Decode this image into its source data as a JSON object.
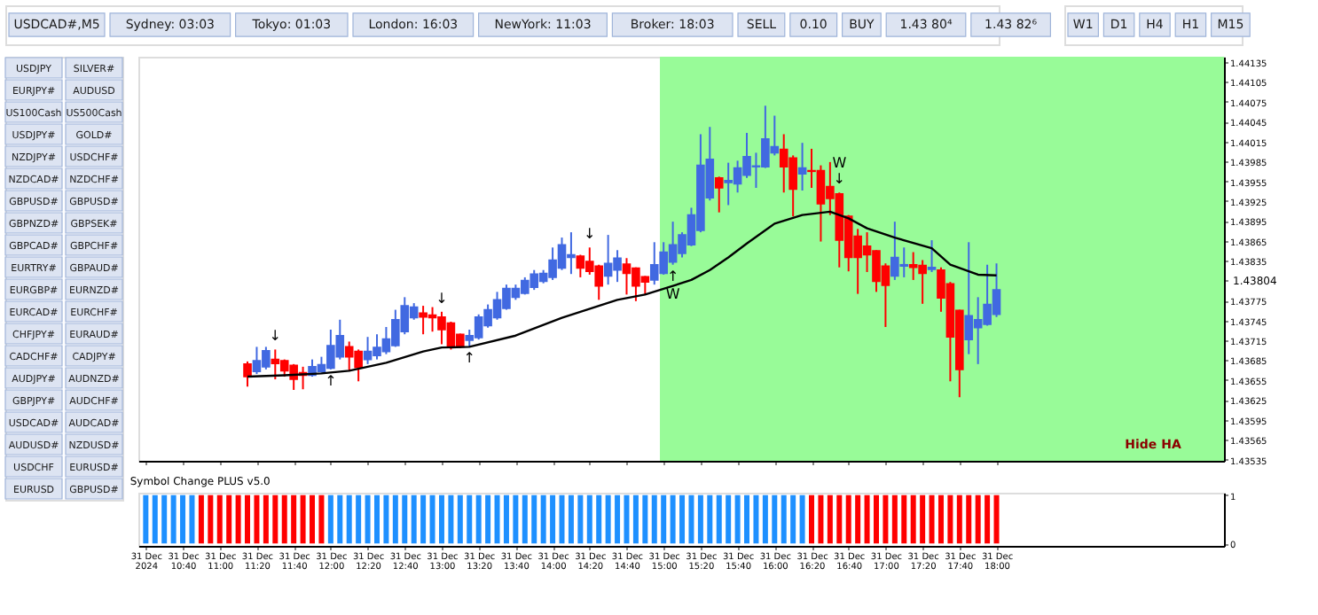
{
  "chart_data": [
    {
      "type": "candlestick",
      "xlim": [
        "2024-12-31T10:16",
        "2024-12-31T20:03"
      ],
      "ylim": [
        1.43533,
        1.44143
      ],
      "tick_labels": "y",
      "xticks": [
        {
          "value": "2024-12-31T10:20",
          "label": null
        },
        {
          "value": "2024-12-31T10:40",
          "label": null
        },
        {
          "value": "2024-12-31T11:00",
          "label": null
        },
        {
          "value": "2024-12-31T11:20",
          "label": null
        },
        {
          "value": "2024-12-31T11:40",
          "label": null
        },
        {
          "value": "2024-12-31T12:00",
          "label": null
        },
        {
          "value": "2024-12-31T12:20",
          "label": null
        },
        {
          "value": "2024-12-31T12:40",
          "label": null
        },
        {
          "value": "2024-12-31T13:00",
          "label": null
        },
        {
          "value": "2024-12-31T13:20",
          "label": null
        },
        {
          "value": "2024-12-31T13:40",
          "label": null
        },
        {
          "value": "2024-12-31T14:00",
          "label": null
        },
        {
          "value": "2024-12-31T14:20",
          "label": null
        },
        {
          "value": "2024-12-31T14:40",
          "label": null
        },
        {
          "value": "2024-12-31T15:00",
          "label": null
        },
        {
          "value": "2024-12-31T15:20",
          "label": null
        },
        {
          "value": "2024-12-31T15:40",
          "label": null
        },
        {
          "value": "2024-12-31T16:00",
          "label": null
        },
        {
          "value": "2024-12-31T16:20",
          "label": null
        },
        {
          "value": "2024-12-31T16:40",
          "label": null
        },
        {
          "value": "2024-12-31T17:00",
          "label": null
        },
        {
          "value": "2024-12-31T17:20",
          "label": null
        },
        {
          "value": "2024-12-31T17:40",
          "label": null
        },
        {
          "value": "2024-12-31T18:00",
          "label": null
        }
      ],
      "yticks": [
        1.43535,
        1.43565,
        1.43595,
        1.43625,
        1.43655,
        1.43685,
        1.43715,
        1.43745,
        1.43775,
        {
          "value": 1.43805,
          "label": null
        },
        1.43835,
        1.43865,
        1.43895,
        1.43925,
        1.43955,
        1.43985,
        1.44015,
        1.44045,
        1.44075,
        1.44105,
        1.44135
      ],
      "bands": [
        {
          "axis": "x",
          "from": "2024-12-31T14:58",
          "to": "2024-12-31T20:03",
          "color": "#98fb98"
        }
      ],
      "x": [
        "2024-12-31T11:15",
        "2024-12-31T11:20",
        "2024-12-31T11:25",
        "2024-12-31T11:30",
        "2024-12-31T11:35",
        "2024-12-31T11:40",
        "2024-12-31T11:45",
        "2024-12-31T11:50",
        "2024-12-31T11:55",
        "2024-12-31T12:00",
        "2024-12-31T12:05",
        "2024-12-31T12:10",
        "2024-12-31T12:15",
        "2024-12-31T12:20",
        "2024-12-31T12:25",
        "2024-12-31T12:30",
        "2024-12-31T12:35",
        "2024-12-31T12:40",
        "2024-12-31T12:45",
        "2024-12-31T12:50",
        "2024-12-31T12:55",
        "2024-12-31T13:00",
        "2024-12-31T13:05",
        "2024-12-31T13:10",
        "2024-12-31T13:15",
        "2024-12-31T13:20",
        "2024-12-31T13:25",
        "2024-12-31T13:30",
        "2024-12-31T13:35",
        "2024-12-31T13:40",
        "2024-12-31T13:45",
        "2024-12-31T13:50",
        "2024-12-31T13:55",
        "2024-12-31T14:00",
        "2024-12-31T14:05",
        "2024-12-31T14:10",
        "2024-12-31T14:15",
        "2024-12-31T14:20",
        "2024-12-31T14:25",
        "2024-12-31T14:30",
        "2024-12-31T14:35",
        "2024-12-31T14:40",
        "2024-12-31T14:45",
        "2024-12-31T14:50",
        "2024-12-31T14:55",
        "2024-12-31T15:00",
        "2024-12-31T15:05",
        "2024-12-31T15:10",
        "2024-12-31T15:15",
        "2024-12-31T15:20",
        "2024-12-31T15:25",
        "2024-12-31T15:30",
        "2024-12-31T15:35",
        "2024-12-31T15:40",
        "2024-12-31T15:45",
        "2024-12-31T15:50",
        "2024-12-31T15:55",
        "2024-12-31T16:00",
        "2024-12-31T16:05",
        "2024-12-31T16:10",
        "2024-12-31T16:15",
        "2024-12-31T16:20",
        "2024-12-31T16:25",
        "2024-12-31T16:30",
        "2024-12-31T16:35",
        "2024-12-31T16:40",
        "2024-12-31T16:45",
        "2024-12-31T16:50",
        "2024-12-31T16:55",
        "2024-12-31T17:00",
        "2024-12-31T17:05",
        "2024-12-31T17:10",
        "2024-12-31T17:15",
        "2024-12-31T17:20",
        "2024-12-31T17:25",
        "2024-12-31T17:30",
        "2024-12-31T17:35",
        "2024-12-31T17:40",
        "2024-12-31T17:45",
        "2024-12-31T17:50",
        "2024-12-31T17:55",
        "2024-12-31T18:00"
      ],
      "ohlc": [
        [
          1.43679,
          1.43683,
          1.43645,
          1.4366
        ],
        [
          1.43668,
          1.43705,
          1.43664,
          1.43684
        ],
        [
          1.43675,
          1.43705,
          1.43671,
          1.43699
        ],
        [
          1.43686,
          1.43701,
          1.43656,
          1.4368
        ],
        [
          1.43684,
          1.43686,
          1.4366,
          1.43669
        ],
        [
          1.43677,
          1.43679,
          1.4364,
          1.43656
        ],
        [
          1.43666,
          1.43675,
          1.43641,
          1.43662
        ],
        [
          1.43662,
          1.43686,
          1.4366,
          1.43675
        ],
        [
          1.43668,
          1.4369,
          1.43666,
          1.43678
        ],
        [
          1.43673,
          1.43731,
          1.43671,
          1.43707
        ],
        [
          1.4369,
          1.43746,
          1.43686,
          1.43722
        ],
        [
          1.43705,
          1.43713,
          1.43668,
          1.4369
        ],
        [
          1.43698,
          1.43701,
          1.43653,
          1.43674
        ],
        [
          1.43686,
          1.4372,
          1.43679,
          1.43698
        ],
        [
          1.43692,
          1.43724,
          1.43686,
          1.43704
        ],
        [
          1.43698,
          1.43735,
          1.43694,
          1.43717
        ],
        [
          1.43707,
          1.43761,
          1.43705,
          1.43746
        ],
        [
          1.43728,
          1.4378,
          1.43724,
          1.43767
        ],
        [
          1.43749,
          1.43771,
          1.43746,
          1.43765
        ],
        [
          1.43756,
          1.43767,
          1.43724,
          1.4375
        ],
        [
          1.43753,
          1.43765,
          1.43728,
          1.43749
        ],
        [
          1.4375,
          1.43758,
          1.43709,
          1.43731
        ],
        [
          1.43741,
          1.43743,
          1.43701,
          1.43705
        ],
        [
          1.43724,
          1.43725,
          1.43703,
          1.43705
        ],
        [
          1.43715,
          1.43731,
          1.43705,
          1.43722
        ],
        [
          1.43719,
          1.43754,
          1.43716,
          1.4375
        ],
        [
          1.43737,
          1.43769,
          1.43734,
          1.43761
        ],
        [
          1.43749,
          1.43788,
          1.43746,
          1.43776
        ],
        [
          1.43763,
          1.43799,
          1.43761,
          1.43793
        ],
        [
          1.4378,
          1.43799,
          1.43776,
          1.43793
        ],
        [
          1.43786,
          1.4381,
          1.43784,
          1.43805
        ],
        [
          1.43795,
          1.43821,
          1.43791,
          1.43815
        ],
        [
          1.43804,
          1.43821,
          1.43801,
          1.43816
        ],
        [
          1.4381,
          1.43855,
          1.43806,
          1.43836
        ],
        [
          1.43824,
          1.4387,
          1.43821,
          1.43859
        ],
        [
          1.4384,
          1.43878,
          1.43815,
          1.43844
        ],
        [
          1.43842,
          1.43844,
          1.4381,
          1.43824
        ],
        [
          1.43834,
          1.43855,
          1.43814,
          1.43819
        ],
        [
          1.43827,
          1.43829,
          1.43776,
          1.43797
        ],
        [
          1.43812,
          1.43874,
          1.43799,
          1.43831
        ],
        [
          1.43821,
          1.43851,
          1.43803,
          1.43839
        ],
        [
          1.4383,
          1.43839,
          1.43784,
          1.43816
        ],
        [
          1.43824,
          1.43825,
          1.43774,
          1.43797
        ],
        [
          1.43811,
          1.43812,
          1.43784,
          1.43803
        ],
        [
          1.43806,
          1.43863,
          1.43799,
          1.43829
        ],
        [
          1.43816,
          1.43863,
          1.43814,
          1.43848
        ],
        [
          1.43833,
          1.43894,
          1.43829,
          1.43859
        ],
        [
          1.43846,
          1.43878,
          1.4384,
          1.43874
        ],
        [
          1.43859,
          1.43915,
          1.43857,
          1.43904
        ],
        [
          1.43881,
          1.44026,
          1.43878,
          1.43979
        ],
        [
          1.4393,
          1.44037,
          1.43926,
          1.43988
        ],
        [
          1.4396,
          1.43962,
          1.43908,
          1.43945
        ],
        [
          1.43953,
          1.43983,
          1.43919,
          1.43956
        ],
        [
          1.43951,
          1.43986,
          1.43938,
          1.43975
        ],
        [
          1.43964,
          1.44028,
          1.4396,
          1.43992
        ],
        [
          1.43977,
          1.43998,
          1.43945,
          1.43978
        ],
        [
          1.43977,
          1.44069,
          1.43975,
          1.44019
        ],
        [
          1.43998,
          1.44054,
          1.43994,
          1.44007
        ],
        [
          1.44003,
          1.44026,
          1.43938,
          1.43977
        ],
        [
          1.4399,
          1.43994,
          1.43902,
          1.43943
        ],
        [
          1.43966,
          1.44013,
          1.43941,
          1.43975
        ],
        [
          1.43971,
          1.44004,
          1.43945,
          1.4397
        ],
        [
          1.43971,
          1.43979,
          1.43864,
          1.43921
        ],
        [
          1.43947,
          1.43984,
          1.43904,
          1.43929
        ],
        [
          1.43936,
          1.43938,
          1.43825,
          1.43866
        ],
        [
          1.43902,
          1.43904,
          1.43819,
          1.4384
        ],
        [
          1.43872,
          1.43883,
          1.43785,
          1.4384
        ],
        [
          1.43857,
          1.43878,
          1.43818,
          1.43844
        ],
        [
          1.4385,
          1.43851,
          1.43788,
          1.43804
        ],
        [
          1.43827,
          1.43831,
          1.43735,
          1.43798
        ],
        [
          1.43812,
          1.43894,
          1.43806,
          1.4384
        ],
        [
          1.43827,
          1.43855,
          1.4381,
          1.43829
        ],
        [
          1.43829,
          1.43848,
          1.43806,
          1.43825
        ],
        [
          1.43828,
          1.43836,
          1.4377,
          1.43816
        ],
        [
          1.43822,
          1.43866,
          1.43818,
          1.43825
        ],
        [
          1.43821,
          1.43825,
          1.43758,
          1.43779
        ],
        [
          1.438,
          1.43803,
          1.43653,
          1.4372
        ],
        [
          1.4376,
          1.43761,
          1.43629,
          1.43671
        ],
        [
          1.43716,
          1.43863,
          1.43694,
          1.43752
        ],
        [
          1.43734,
          1.4378,
          1.43679,
          1.43746
        ],
        [
          1.43739,
          1.43829,
          1.43737,
          1.43769
        ],
        [
          1.43754,
          1.43831,
          1.4375,
          1.43791
        ]
      ],
      "colors": [
        "#ff0000",
        "#4169e1",
        "#4169e1",
        "#ff0000",
        "#ff0000",
        "#ff0000",
        "#ff0000",
        "#4169e1",
        "#4169e1",
        "#4169e1",
        "#4169e1",
        "#ff0000",
        "#ff0000",
        "#4169e1",
        "#4169e1",
        "#4169e1",
        "#4169e1",
        "#4169e1",
        "#4169e1",
        "#ff0000",
        "#ff0000",
        "#ff0000",
        "#ff0000",
        "#ff0000",
        "#4169e1",
        "#4169e1",
        "#4169e1",
        "#4169e1",
        "#4169e1",
        "#4169e1",
        "#4169e1",
        "#4169e1",
        "#4169e1",
        "#4169e1",
        "#4169e1",
        "#4169e1",
        "#ff0000",
        "#ff0000",
        "#ff0000",
        "#4169e1",
        "#4169e1",
        "#ff0000",
        "#ff0000",
        "#ff0000",
        "#4169e1",
        "#4169e1",
        "#4169e1",
        "#4169e1",
        "#4169e1",
        "#4169e1",
        "#4169e1",
        "#ff0000",
        "#4169e1",
        "#4169e1",
        "#4169e1",
        "#4169e1",
        "#4169e1",
        "#4169e1",
        "#ff0000",
        "#ff0000",
        "#4169e1",
        "#ff0000",
        "#ff0000",
        "#ff0000",
        "#ff0000",
        "#ff0000",
        "#ff0000",
        "#ff0000",
        "#ff0000",
        "#ff0000",
        "#4169e1",
        "#4169e1",
        "#ff0000",
        "#ff0000",
        "#4169e1",
        "#ff0000",
        "#ff0000",
        "#ff0000",
        "#4169e1",
        "#4169e1",
        "#4169e1",
        "#4169e1"
      ],
      "series": [
        {
          "type": "line",
          "color": "#000000",
          "x": [
            "2024-12-31T11:15",
            "2024-12-31T11:35",
            "2024-12-31T11:55",
            "2024-12-31T12:10",
            "2024-12-31T12:30",
            "2024-12-31T12:50",
            "2024-12-31T13:00",
            "2024-12-31T13:15",
            "2024-12-31T13:40",
            "2024-12-31T14:05",
            "2024-12-31T14:25",
            "2024-12-31T14:35",
            "2024-12-31T14:50",
            "2024-12-31T15:05",
            "2024-12-31T15:15",
            "2024-12-31T15:25",
            "2024-12-31T15:35",
            "2024-12-31T15:45",
            "2024-12-31T16:00",
            "2024-12-31T16:15",
            "2024-12-31T16:30",
            "2024-12-31T16:40",
            "2024-12-31T16:50",
            "2024-12-31T17:05",
            "2024-12-31T17:25",
            "2024-12-31T17:35",
            "2024-12-31T17:50",
            "2024-12-31T18:00"
          ],
          "values": [
            1.4366,
            1.43662,
            1.43665,
            1.43669,
            1.43681,
            1.43698,
            1.43704,
            1.43705,
            1.43722,
            1.43749,
            1.43767,
            1.43776,
            1.43784,
            1.43797,
            1.43806,
            1.43821,
            1.4384,
            1.43861,
            1.43891,
            1.43904,
            1.43909,
            1.43899,
            1.43884,
            1.4387,
            1.43854,
            1.43829,
            1.43814,
            1.43813
          ]
        }
      ],
      "annotations": [
        {
          "text": "↓",
          "x": "2024-12-31T11:30",
          "y": 1.43701
        },
        {
          "text": "↓",
          "x": "2024-12-31T13:00",
          "y": 1.43758
        },
        {
          "text": "↓",
          "x": "2024-12-31T14:20",
          "y": 1.43855
        },
        {
          "text": "↓",
          "x": "2024-12-31T16:35",
          "y": 1.43938
        },
        {
          "text": "W",
          "x": "2024-12-31T16:35",
          "y": 1.43938
        },
        {
          "text": "↑",
          "x": "2024-12-31T12:00",
          "y": 1.43671
        },
        {
          "text": "↑",
          "x": "2024-12-31T13:15",
          "y": 1.43705
        },
        {
          "text": "↑",
          "x": "2024-12-31T15:05",
          "y": 1.43829
        },
        {
          "text": "W",
          "x": "2024-12-31T15:05",
          "y": 1.43829
        },
        {
          "text": "1.43804",
          "x": "2024-12-31T20:03",
          "y": 1.43804
        },
        "Hide HA"
      ]
    },
    {
      "type": "bar",
      "title": "Symbol Change PLUS v5.0",
      "xlim": [
        "2024-12-31T10:16",
        "2024-12-31T20:03"
      ],
      "ylim": [
        -0.05,
        1.05
      ],
      "yticks": [
        0,
        1
      ],
      "xticks": [
        {
          "value": "2024-12-31T10:20",
          "label": "31 Dec 2024"
        },
        {
          "value": "2024-12-31T10:40",
          "label": "31 Dec 10:40"
        },
        {
          "value": "2024-12-31T11:00",
          "label": "31 Dec 11:00"
        },
        {
          "value": "2024-12-31T11:20",
          "label": "31 Dec 11:20"
        },
        {
          "value": "2024-12-31T11:40",
          "label": "31 Dec 11:40"
        },
        {
          "value": "2024-12-31T12:00",
          "label": "31 Dec 12:00"
        },
        {
          "value": "2024-12-31T12:20",
          "label": "31 Dec 12:20"
        },
        {
          "value": "2024-12-31T12:40",
          "label": "31 Dec 12:40"
        },
        {
          "value": "2024-12-31T13:00",
          "label": "31 Dec 13:00"
        },
        {
          "value": "2024-12-31T13:20",
          "label": "31 Dec 13:20"
        },
        {
          "value": "2024-12-31T13:40",
          "label": "31 Dec 13:40"
        },
        {
          "value": "2024-12-31T14:00",
          "label": "31 Dec 14:00"
        },
        {
          "value": "2024-12-31T14:20",
          "label": "31 Dec 14:20"
        },
        {
          "value": "2024-12-31T14:40",
          "label": "31 Dec 14:40"
        },
        {
          "value": "2024-12-31T15:00",
          "label": "31 Dec 15:00"
        },
        {
          "value": "2024-12-31T15:20",
          "label": "31 Dec 15:20"
        },
        {
          "value": "2024-12-31T15:40",
          "label": "31 Dec 15:40"
        },
        {
          "value": "2024-12-31T16:00",
          "label": "31 Dec 16:00"
        },
        {
          "value": "2024-12-31T16:20",
          "label": "31 Dec 16:20"
        },
        {
          "value": "2024-12-31T16:40",
          "label": "31 Dec 16:40"
        },
        {
          "value": "2024-12-31T17:00",
          "label": "31 Dec 17:00"
        },
        {
          "value": "2024-12-31T17:20",
          "label": "31 Dec 17:20"
        },
        {
          "value": "2024-12-31T17:40",
          "label": "31 Dec 17:40"
        },
        {
          "value": "2024-12-31T18:00",
          "label": "31 Dec 18:00"
        }
      ],
      "x": [
        "2024-12-31T10:20",
        "2024-12-31T10:25",
        "2024-12-31T10:30",
        "2024-12-31T10:35",
        "2024-12-31T10:40",
        "2024-12-31T10:45",
        "2024-12-31T10:50",
        "2024-12-31T10:55",
        "2024-12-31T11:00",
        "2024-12-31T11:05",
        "2024-12-31T11:10",
        "2024-12-31T11:15",
        "2024-12-31T11:20",
        "2024-12-31T11:25",
        "2024-12-31T11:30",
        "2024-12-31T11:35",
        "2024-12-31T11:40",
        "2024-12-31T11:45",
        "2024-12-31T11:50",
        "2024-12-31T11:55",
        "2024-12-31T12:00",
        "2024-12-31T12:05",
        "2024-12-31T12:10",
        "2024-12-31T12:15",
        "2024-12-31T12:20",
        "2024-12-31T12:25",
        "2024-12-31T12:30",
        "2024-12-31T12:35",
        "2024-12-31T12:40",
        "2024-12-31T12:45",
        "2024-12-31T12:50",
        "2024-12-31T12:55",
        "2024-12-31T13:00",
        "2024-12-31T13:05",
        "2024-12-31T13:10",
        "2024-12-31T13:15",
        "2024-12-31T13:20",
        "2024-12-31T13:25",
        "2024-12-31T13:30",
        "2024-12-31T13:35",
        "2024-12-31T13:40",
        "2024-12-31T13:45",
        "2024-12-31T13:50",
        "2024-12-31T13:55",
        "2024-12-31T14:00",
        "2024-12-31T14:05",
        "2024-12-31T14:10",
        "2024-12-31T14:15",
        "2024-12-31T14:20",
        "2024-12-31T14:25",
        "2024-12-31T14:30",
        "2024-12-31T14:35",
        "2024-12-31T14:40",
        "2024-12-31T14:45",
        "2024-12-31T14:50",
        "2024-12-31T14:55",
        "2024-12-31T15:00",
        "2024-12-31T15:05",
        "2024-12-31T15:10",
        "2024-12-31T15:15",
        "2024-12-31T15:20",
        "2024-12-31T15:25",
        "2024-12-31T15:30",
        "2024-12-31T15:35",
        "2024-12-31T15:40",
        "2024-12-31T15:45",
        "2024-12-31T15:50",
        "2024-12-31T15:55",
        "2024-12-31T16:00",
        "2024-12-31T16:05",
        "2024-12-31T16:10",
        "2024-12-31T16:15",
        "2024-12-31T16:20",
        "2024-12-31T16:25",
        "2024-12-31T16:30",
        "2024-12-31T16:35",
        "2024-12-31T16:40",
        "2024-12-31T16:45",
        "2024-12-31T16:50",
        "2024-12-31T16:55",
        "2024-12-31T17:00",
        "2024-12-31T17:05",
        "2024-12-31T17:10",
        "2024-12-31T17:15",
        "2024-12-31T17:20",
        "2024-12-31T17:25",
        "2024-12-31T17:30",
        "2024-12-31T17:35",
        "2024-12-31T17:40",
        "2024-12-31T17:45",
        "2024-12-31T17:50",
        "2024-12-31T17:55",
        "2024-12-31T18:00"
      ],
      "values": [
        1,
        1,
        1,
        1,
        1,
        1,
        1,
        1,
        1,
        1,
        1,
        1,
        1,
        1,
        1,
        1,
        1,
        1,
        1,
        1,
        1,
        1,
        1,
        1,
        1,
        1,
        1,
        1,
        1,
        1,
        1,
        1,
        1,
        1,
        1,
        1,
        1,
        1,
        1,
        1,
        1,
        1,
        1,
        1,
        1,
        1,
        1,
        1,
        1,
        1,
        1,
        1,
        1,
        1,
        1,
        1,
        1,
        1,
        1,
        1,
        1,
        1,
        1,
        1,
        1,
        1,
        1,
        1,
        1,
        1,
        1,
        1,
        1,
        1,
        1,
        1,
        1,
        1,
        1,
        1,
        1,
        1,
        1,
        1,
        1,
        1,
        1,
        1,
        1,
        1,
        1,
        1,
        1
      ],
      "colors": [
        "#1e90ff",
        "#1e90ff",
        "#1e90ff",
        "#1e90ff",
        "#1e90ff",
        "#1e90ff",
        "#ff0000",
        "#ff0000",
        "#ff0000",
        "#ff0000",
        "#ff0000",
        "#ff0000",
        "#ff0000",
        "#ff0000",
        "#ff0000",
        "#ff0000",
        "#ff0000",
        "#ff0000",
        "#ff0000",
        "#ff0000",
        "#1e90ff",
        "#1e90ff",
        "#1e90ff",
        "#1e90ff",
        "#1e90ff",
        "#1e90ff",
        "#1e90ff",
        "#1e90ff",
        "#1e90ff",
        "#1e90ff",
        "#1e90ff",
        "#1e90ff",
        "#1e90ff",
        "#1e90ff",
        "#1e90ff",
        "#1e90ff",
        "#1e90ff",
        "#1e90ff",
        "#1e90ff",
        "#1e90ff",
        "#1e90ff",
        "#1e90ff",
        "#1e90ff",
        "#1e90ff",
        "#1e90ff",
        "#1e90ff",
        "#1e90ff",
        "#1e90ff",
        "#1e90ff",
        "#1e90ff",
        "#1e90ff",
        "#1e90ff",
        "#1e90ff",
        "#1e90ff",
        "#1e90ff",
        "#1e90ff",
        "#1e90ff",
        "#1e90ff",
        "#1e90ff",
        "#1e90ff",
        "#1e90ff",
        "#1e90ff",
        "#1e90ff",
        "#1e90ff",
        "#1e90ff",
        "#1e90ff",
        "#1e90ff",
        "#1e90ff",
        "#1e90ff",
        "#1e90ff",
        "#1e90ff",
        "#1e90ff",
        "#ff0000",
        "#ff0000",
        "#ff0000",
        "#ff0000",
        "#ff0000",
        "#ff0000",
        "#ff0000",
        "#ff0000",
        "#ff0000",
        "#ff0000",
        "#ff0000",
        "#ff0000",
        "#ff0000",
        "#ff0000",
        "#ff0000",
        "#ff0000",
        "#ff0000",
        "#ff0000",
        "#ff0000",
        "#ff0000",
        "#ff0000"
      ]
    },
    {
      "type": "other",
      "annotations": [
        "USDCAD#,M5",
        "Sydney: 03:03",
        "Tokyo: 01:03",
        "London: 16:03",
        "NewYork: 11:03",
        "Broker: 18:03",
        "SELL",
        "0.10",
        "BUY",
        "1.43 80⁴",
        "1.43 82⁶"
      ]
    },
    {
      "type": "other",
      "annotations": [
        "USDJPY",
        "SILVER#",
        "EURJPY#",
        "AUDUSD",
        "US100Cash",
        "US500Cash",
        "USDJPY#",
        "GOLD#",
        "NZDJPY#",
        "USDCHF#",
        "NZDCAD#",
        "NZDCHF#",
        "GBPUSD#",
        "GBPUSD#",
        "GBPNZD#",
        "GBPSEK#",
        "GBPCAD#",
        "GBPCHF#",
        "EURTRY#",
        "GBPAUD#",
        "EURGBP#",
        "EURNZD#",
        "EURCAD#",
        "EURCHF#",
        "CHFJPY#",
        "EURAUD#",
        "CADCHF#",
        "CADJPY#",
        "AUDJPY#",
        "AUDNZD#",
        "GBPJPY#",
        "AUDCHF#",
        "USDCAD#",
        "AUDCAD#",
        "AUDUSD#",
        "NZDUSD#",
        "USDCHF",
        "EURUSD#",
        "EURUSD",
        "GBPUSD#"
      ]
    },
    {
      "type": "other",
      "annotations": [
        "W1",
        "D1",
        "H4",
        "H1",
        "M15"
      ]
    }
  ]
}
